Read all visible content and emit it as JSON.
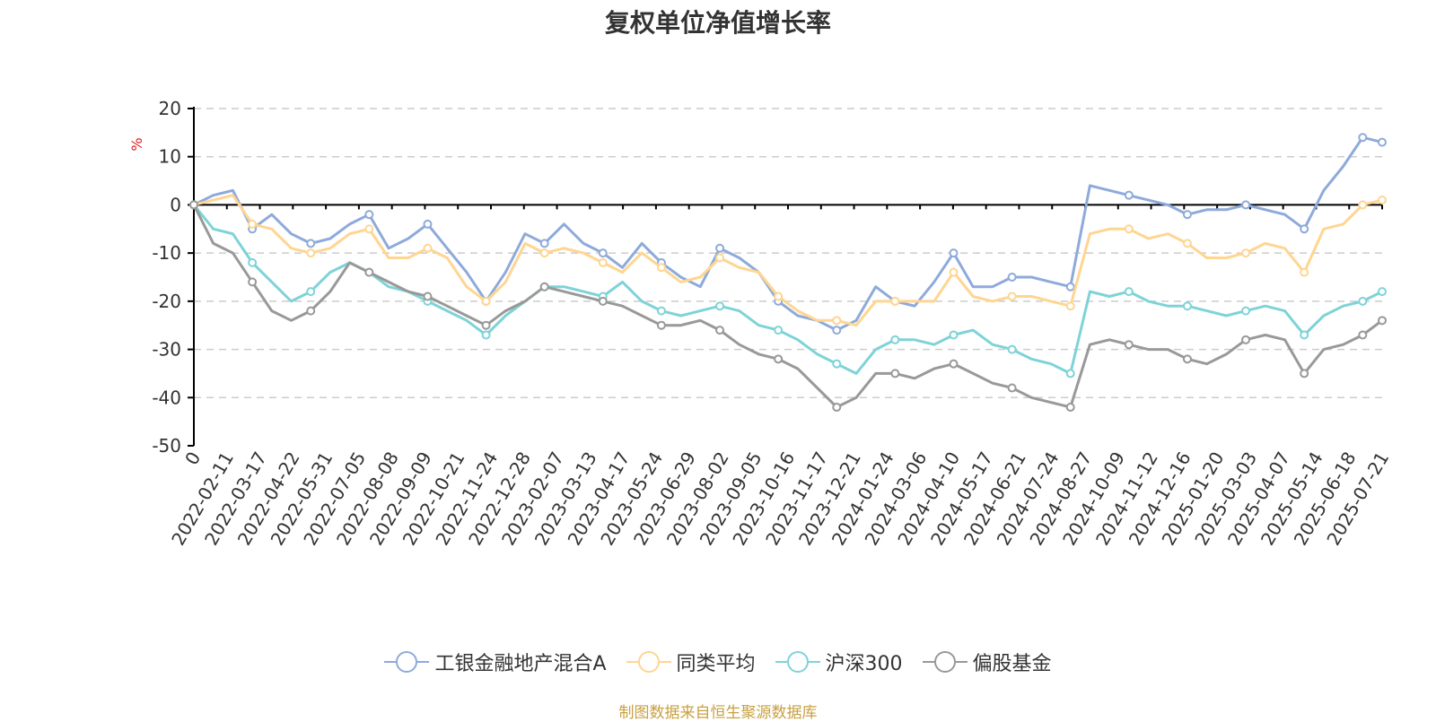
{
  "chart_data": {
    "type": "line",
    "title": "复权单位净值增长率",
    "ylabel": "%",
    "ylim": [
      -50,
      20
    ],
    "yticks": [
      "20",
      "10",
      "0",
      "-10",
      "-20",
      "-30",
      "-40",
      "-50"
    ],
    "xticks": [
      "0",
      "2022-02-11",
      "2022-03-17",
      "2022-04-22",
      "2022-05-31",
      "2022-07-05",
      "2022-08-08",
      "2022-09-09",
      "2022-10-21",
      "2022-11-24",
      "2022-12-28",
      "2023-02-07",
      "2023-03-13",
      "2023-04-17",
      "2023-05-24",
      "2023-06-29",
      "2023-08-02",
      "2023-09-05",
      "2023-10-16",
      "2023-11-17",
      "2023-12-21",
      "2024-01-24",
      "2024-03-06",
      "2024-04-10",
      "2024-05-17",
      "2024-06-21",
      "2024-07-24",
      "2024-08-27",
      "2024-10-09",
      "2024-11-12",
      "2024-12-16",
      "2025-01-20",
      "2025-03-03",
      "2025-04-07",
      "2025-05-14",
      "2025-06-18",
      "2025-07-21"
    ],
    "grid": true,
    "legend_position": "bottom",
    "series": [
      {
        "name": "工银金融地产混合A",
        "color": "#8eaadb",
        "values": [
          0,
          2,
          3,
          -5,
          -2,
          -6,
          -8,
          -7,
          -4,
          -2,
          -9,
          -7,
          -4,
          -9,
          -14,
          -20,
          -14,
          -6,
          -8,
          -4,
          -8,
          -10,
          -13,
          -8,
          -12,
          -15,
          -17,
          -9,
          -11,
          -14,
          -20,
          -23,
          -24,
          -26,
          -24,
          -17,
          -20,
          -21,
          -16,
          -10,
          -17,
          -17,
          -15,
          -15,
          -16,
          -17,
          4,
          3,
          2,
          1,
          0,
          -2,
          -1,
          -1,
          0,
          -1,
          -2,
          -5,
          3,
          8,
          14,
          13
        ]
      },
      {
        "name": "同类平均",
        "color": "#ffd591",
        "values": [
          0,
          1,
          2,
          -4,
          -5,
          -9,
          -10,
          -9,
          -6,
          -5,
          -11,
          -11,
          -9,
          -11,
          -17,
          -20,
          -16,
          -8,
          -10,
          -9,
          -10,
          -12,
          -14,
          -10,
          -13,
          -16,
          -15,
          -11,
          -13,
          -14,
          -19,
          -22,
          -24,
          -24,
          -25,
          -20,
          -20,
          -20,
          -20,
          -14,
          -19,
          -20,
          -19,
          -19,
          -20,
          -21,
          -6,
          -5,
          -5,
          -7,
          -6,
          -8,
          -11,
          -11,
          -10,
          -8,
          -9,
          -14,
          -5,
          -4,
          0,
          1
        ]
      },
      {
        "name": "沪深300",
        "color": "#7ed3d8",
        "values": [
          0,
          -5,
          -6,
          -12,
          -16,
          -20,
          -18,
          -14,
          -12,
          -14,
          -17,
          -18,
          -20,
          -22,
          -24,
          -27,
          -23,
          -20,
          -17,
          -17,
          -18,
          -19,
          -16,
          -20,
          -22,
          -23,
          -22,
          -21,
          -22,
          -25,
          -26,
          -28,
          -31,
          -33,
          -35,
          -30,
          -28,
          -28,
          -29,
          -27,
          -26,
          -29,
          -30,
          -32,
          -33,
          -35,
          -18,
          -19,
          -18,
          -20,
          -21,
          -21,
          -22,
          -23,
          -22,
          -21,
          -22,
          -27,
          -23,
          -21,
          -20,
          -18
        ]
      },
      {
        "name": "偏股基金",
        "color": "#999999",
        "values": [
          0,
          -8,
          -10,
          -16,
          -22,
          -24,
          -22,
          -18,
          -12,
          -14,
          -16,
          -18,
          -19,
          -21,
          -23,
          -25,
          -22,
          -20,
          -17,
          -18,
          -19,
          -20,
          -21,
          -23,
          -25,
          -25,
          -24,
          -26,
          -29,
          -31,
          -32,
          -34,
          -38,
          -42,
          -40,
          -35,
          -35,
          -36,
          -34,
          -33,
          -35,
          -37,
          -38,
          -40,
          -41,
          -42,
          -29,
          -28,
          -29,
          -30,
          -30,
          -32,
          -33,
          -31,
          -28,
          -27,
          -28,
          -35,
          -30,
          -29,
          -27,
          -24
        ]
      }
    ]
  },
  "source_note": "制图数据来自恒生聚源数据库"
}
